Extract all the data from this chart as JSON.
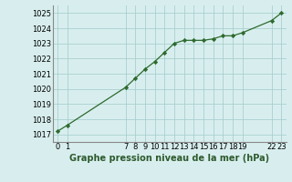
{
  "title": "Graphe pression niveau de la mer (hPa)",
  "x_values": [
    0,
    1,
    7,
    8,
    9,
    10,
    11,
    12,
    13,
    14,
    15,
    16,
    17,
    18,
    19,
    22,
    23
  ],
  "y_values": [
    1017.2,
    1017.6,
    1020.1,
    1020.7,
    1021.3,
    1021.8,
    1022.4,
    1023.0,
    1023.2,
    1023.2,
    1023.2,
    1023.3,
    1023.5,
    1023.5,
    1023.7,
    1024.5,
    1025.0
  ],
  "xlim": [
    -0.5,
    23.5
  ],
  "ylim": [
    1016.5,
    1025.5
  ],
  "yticks": [
    1017,
    1018,
    1019,
    1020,
    1021,
    1022,
    1023,
    1024,
    1025
  ],
  "xticks": [
    0,
    1,
    7,
    8,
    9,
    10,
    11,
    12,
    13,
    14,
    15,
    16,
    17,
    18,
    19,
    22,
    23
  ],
  "line_color": "#2d6a2d",
  "marker_color": "#2d6a2d",
  "bg_color": "#d8eeee",
  "grid_color": "#aacfcf",
  "title_color": "#2d5a2d",
  "title_fontsize": 7.0,
  "tick_fontsize": 6.0,
  "left_spine_color": "#888888"
}
